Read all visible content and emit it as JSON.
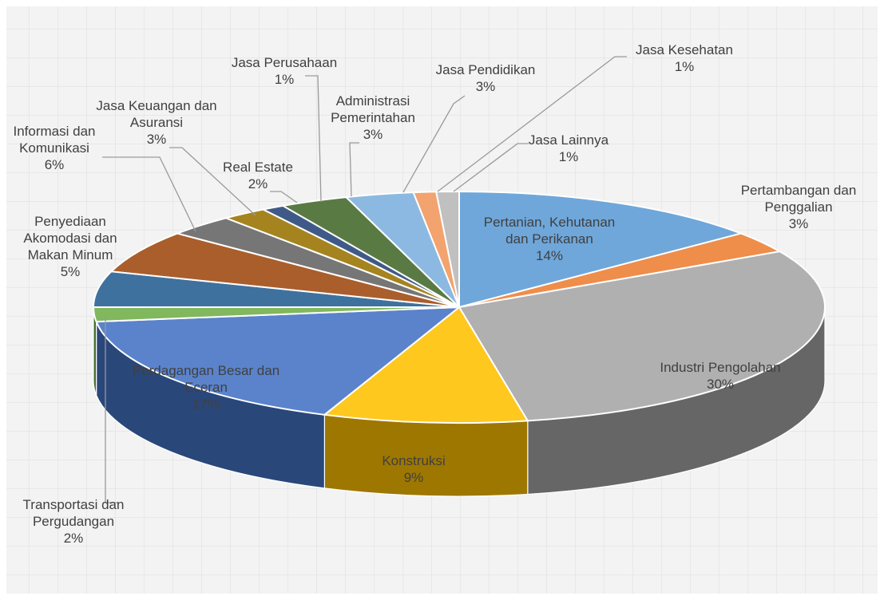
{
  "chart_data": {
    "type": "pie",
    "style": "3d",
    "title": "",
    "legend": "none",
    "slices": [
      {
        "label": "Pertanian, Kehutanan dan Perikanan",
        "value": 14,
        "value_label": "14%",
        "color": "#5B9BD5"
      },
      {
        "label": "Pertambangan dan Penggalian",
        "value": 3,
        "value_label": "3%",
        "color": "#ED7D31"
      },
      {
        "label": "Industri Pengolahan",
        "value": 30,
        "value_label": "30%",
        "color": "#A5A5A5"
      },
      {
        "label": "Konstruksi",
        "value": 9,
        "value_label": "9%",
        "color": "#FFC000"
      },
      {
        "label": "Perdagangan Besar dan Eceran",
        "value": 17,
        "value_label": "17%",
        "color": "#4472C4"
      },
      {
        "label": "Transportasi dan Pergudangan",
        "value": 2,
        "value_label": "2%",
        "color": "#70AD47"
      },
      {
        "label": "Penyediaan Akomodasi dan Makan Minum",
        "value": 5,
        "value_label": "5%",
        "color": "#255E91"
      },
      {
        "label": "Informasi dan Komunikasi",
        "value": 6,
        "value_label": "6%",
        "color": "#9E480E"
      },
      {
        "label": "Jasa Keuangan dan Asuransi",
        "value": 3,
        "value_label": "3%",
        "color": "#636363"
      },
      {
        "label": "Real Estate",
        "value": 2,
        "value_label": "2%",
        "color": "#997300"
      },
      {
        "label": "Jasa Perusahaan",
        "value": 1,
        "value_label": "1%",
        "color": "#264478"
      },
      {
        "label": "Administrasi Pemerintahan",
        "value": 3,
        "value_label": "3%",
        "color": "#43682B"
      },
      {
        "label": "Jasa Pendidikan",
        "value": 3,
        "value_label": "3%",
        "color": "#7CAFDD"
      },
      {
        "label": "Jasa Kesehatan",
        "value": 1,
        "value_label": "1%",
        "color": "#F1975A"
      },
      {
        "label": "Jasa Lainnya",
        "value": 1,
        "value_label": "1%",
        "color": "#B7B7B7"
      }
    ]
  },
  "labels": [
    {
      "lines": [
        "Pertanian,  Kehutanan",
        "dan Perikanan",
        "14%"
      ]
    },
    {
      "lines": [
        "Pertambangan  dan",
        "Penggalian",
        "3%"
      ]
    },
    {
      "lines": [
        "Industri Pengolahan",
        "30%"
      ]
    },
    {
      "lines": [
        "Konstruksi",
        "9%"
      ]
    },
    {
      "lines": [
        "Perdagangan Besar dan",
        "Eceran",
        "17%"
      ]
    },
    {
      "lines": [
        "Transportasi dan",
        "Pergudangan",
        "2%"
      ]
    },
    {
      "lines": [
        "Penyediaan",
        "Akomodasi dan",
        "Makan Minum",
        "5%"
      ]
    },
    {
      "lines": [
        "Informasi  dan",
        "Komunikasi",
        "6%"
      ]
    },
    {
      "lines": [
        "Jasa Keuangan dan",
        "Asuransi",
        "3%"
      ]
    },
    {
      "lines": [
        "Real Estate",
        "2%"
      ]
    },
    {
      "lines": [
        "Jasa Perusahaan",
        "1%"
      ]
    },
    {
      "lines": [
        "Administrasi",
        "Pemerintahan",
        "3%"
      ]
    },
    {
      "lines": [
        "Jasa Pendidikan",
        "3%"
      ]
    },
    {
      "lines": [
        "Jasa Kesehatan",
        "1%"
      ]
    },
    {
      "lines": [
        "Jasa Lainnya",
        "1%"
      ]
    }
  ]
}
